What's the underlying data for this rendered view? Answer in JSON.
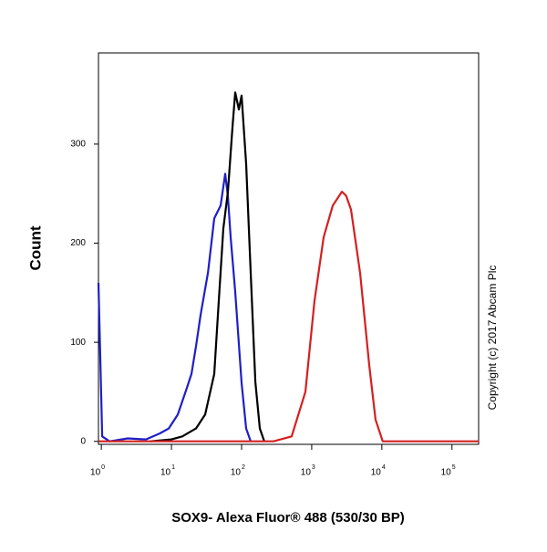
{
  "chart_data": {
    "type": "line",
    "x_scale": "log",
    "y_label": "Count",
    "x_label": "SOX9- Alexa Fluor® 488 (530/30 BP)",
    "annotation": "Copyright (c) 2017 Abcam Plc",
    "xlim": [
      0.91,
      240000
    ],
    "ylim": [
      -3,
      392
    ],
    "xticks": [
      {
        "value": 1,
        "label": "10",
        "exponent": "0"
      },
      {
        "value": 10,
        "label": "10",
        "exponent": "1"
      },
      {
        "value": 100,
        "label": "10",
        "exponent": "2"
      },
      {
        "value": 1000,
        "label": "10",
        "exponent": "3"
      },
      {
        "value": 10000,
        "label": "10",
        "exponent": "4"
      },
      {
        "value": 100000,
        "label": "10",
        "exponent": "5"
      }
    ],
    "yticks": [
      0,
      100,
      200,
      300
    ],
    "series": [
      {
        "color": "#1f1fc8",
        "x": [
          0.91,
          1.03,
          1.31,
          2.38,
          4.33,
          6.78,
          9.14,
          12.3,
          16.6,
          19.3,
          22.4,
          26.1,
          33.1,
          40.7,
          50.2,
          58.3,
          63.8,
          69.8,
          81.1,
          100,
          116,
          135
        ],
        "values": [
          160,
          5,
          0,
          3,
          2,
          8,
          13,
          27,
          54,
          68,
          96,
          128,
          170,
          225,
          238,
          270,
          247,
          206,
          151,
          59,
          13,
          0
        ]
      },
      {
        "color": "#000000",
        "x": [
          5,
          10,
          14.3,
          22.4,
          30.2,
          40.7,
          47.3,
          55,
          63.8,
          74.1,
          81.1,
          91.4,
          100,
          116,
          135,
          157,
          182,
          211
        ],
        "values": [
          0,
          2,
          5,
          13,
          27,
          68,
          142,
          215,
          252,
          317,
          352,
          335,
          349,
          280,
          170,
          60,
          13,
          0
        ]
      },
      {
        "color": "#d42020",
        "x": [
          0.91,
          285,
          518,
          813,
          1096,
          1479,
          1995,
          2692,
          3090,
          3631,
          4898,
          6607,
          8128,
          10300,
          240000
        ],
        "values": [
          0,
          0,
          5,
          50,
          142,
          206,
          238,
          252,
          248,
          234,
          170,
          77,
          22,
          0,
          0
        ]
      }
    ]
  }
}
